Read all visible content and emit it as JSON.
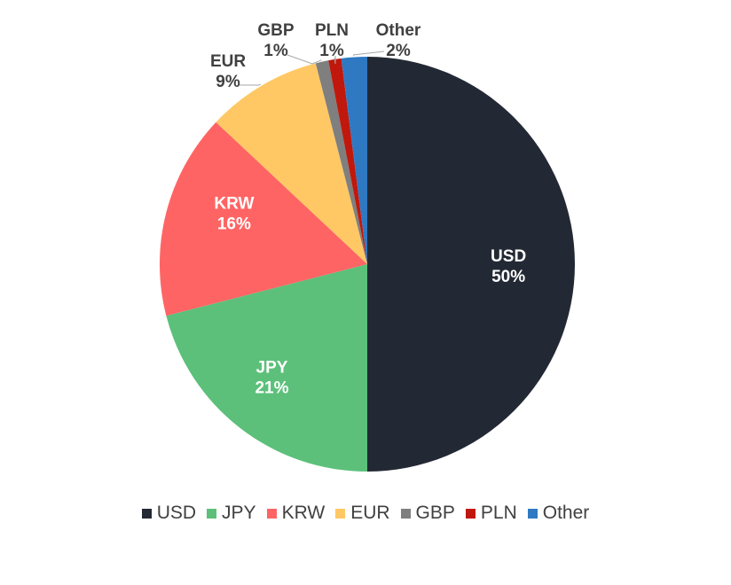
{
  "chart_data": {
    "type": "pie",
    "categories": [
      "USD",
      "JPY",
      "KRW",
      "EUR",
      "GBP",
      "PLN",
      "Other"
    ],
    "values": [
      50,
      21,
      16,
      9,
      1,
      1,
      2
    ],
    "data_labels": [
      "50%",
      "21%",
      "16%",
      "9%",
      "1%",
      "1%",
      "2%"
    ],
    "colors": [
      "#232934",
      "#5CC07A",
      "#FF6464",
      "#FFC864",
      "#7F7F7F",
      "#C0180C",
      "#2F79C3"
    ],
    "label_colors": [
      "#ffffff",
      "#ffffff",
      "#ffffff",
      "#404040",
      "#404040",
      "#404040",
      "#404040"
    ],
    "label_placement": [
      "inside",
      "inside",
      "inside",
      "outside",
      "outside",
      "outside",
      "outside"
    ],
    "start": "top",
    "direction": "clockwise",
    "legend_placement": "bottom",
    "title": ""
  }
}
